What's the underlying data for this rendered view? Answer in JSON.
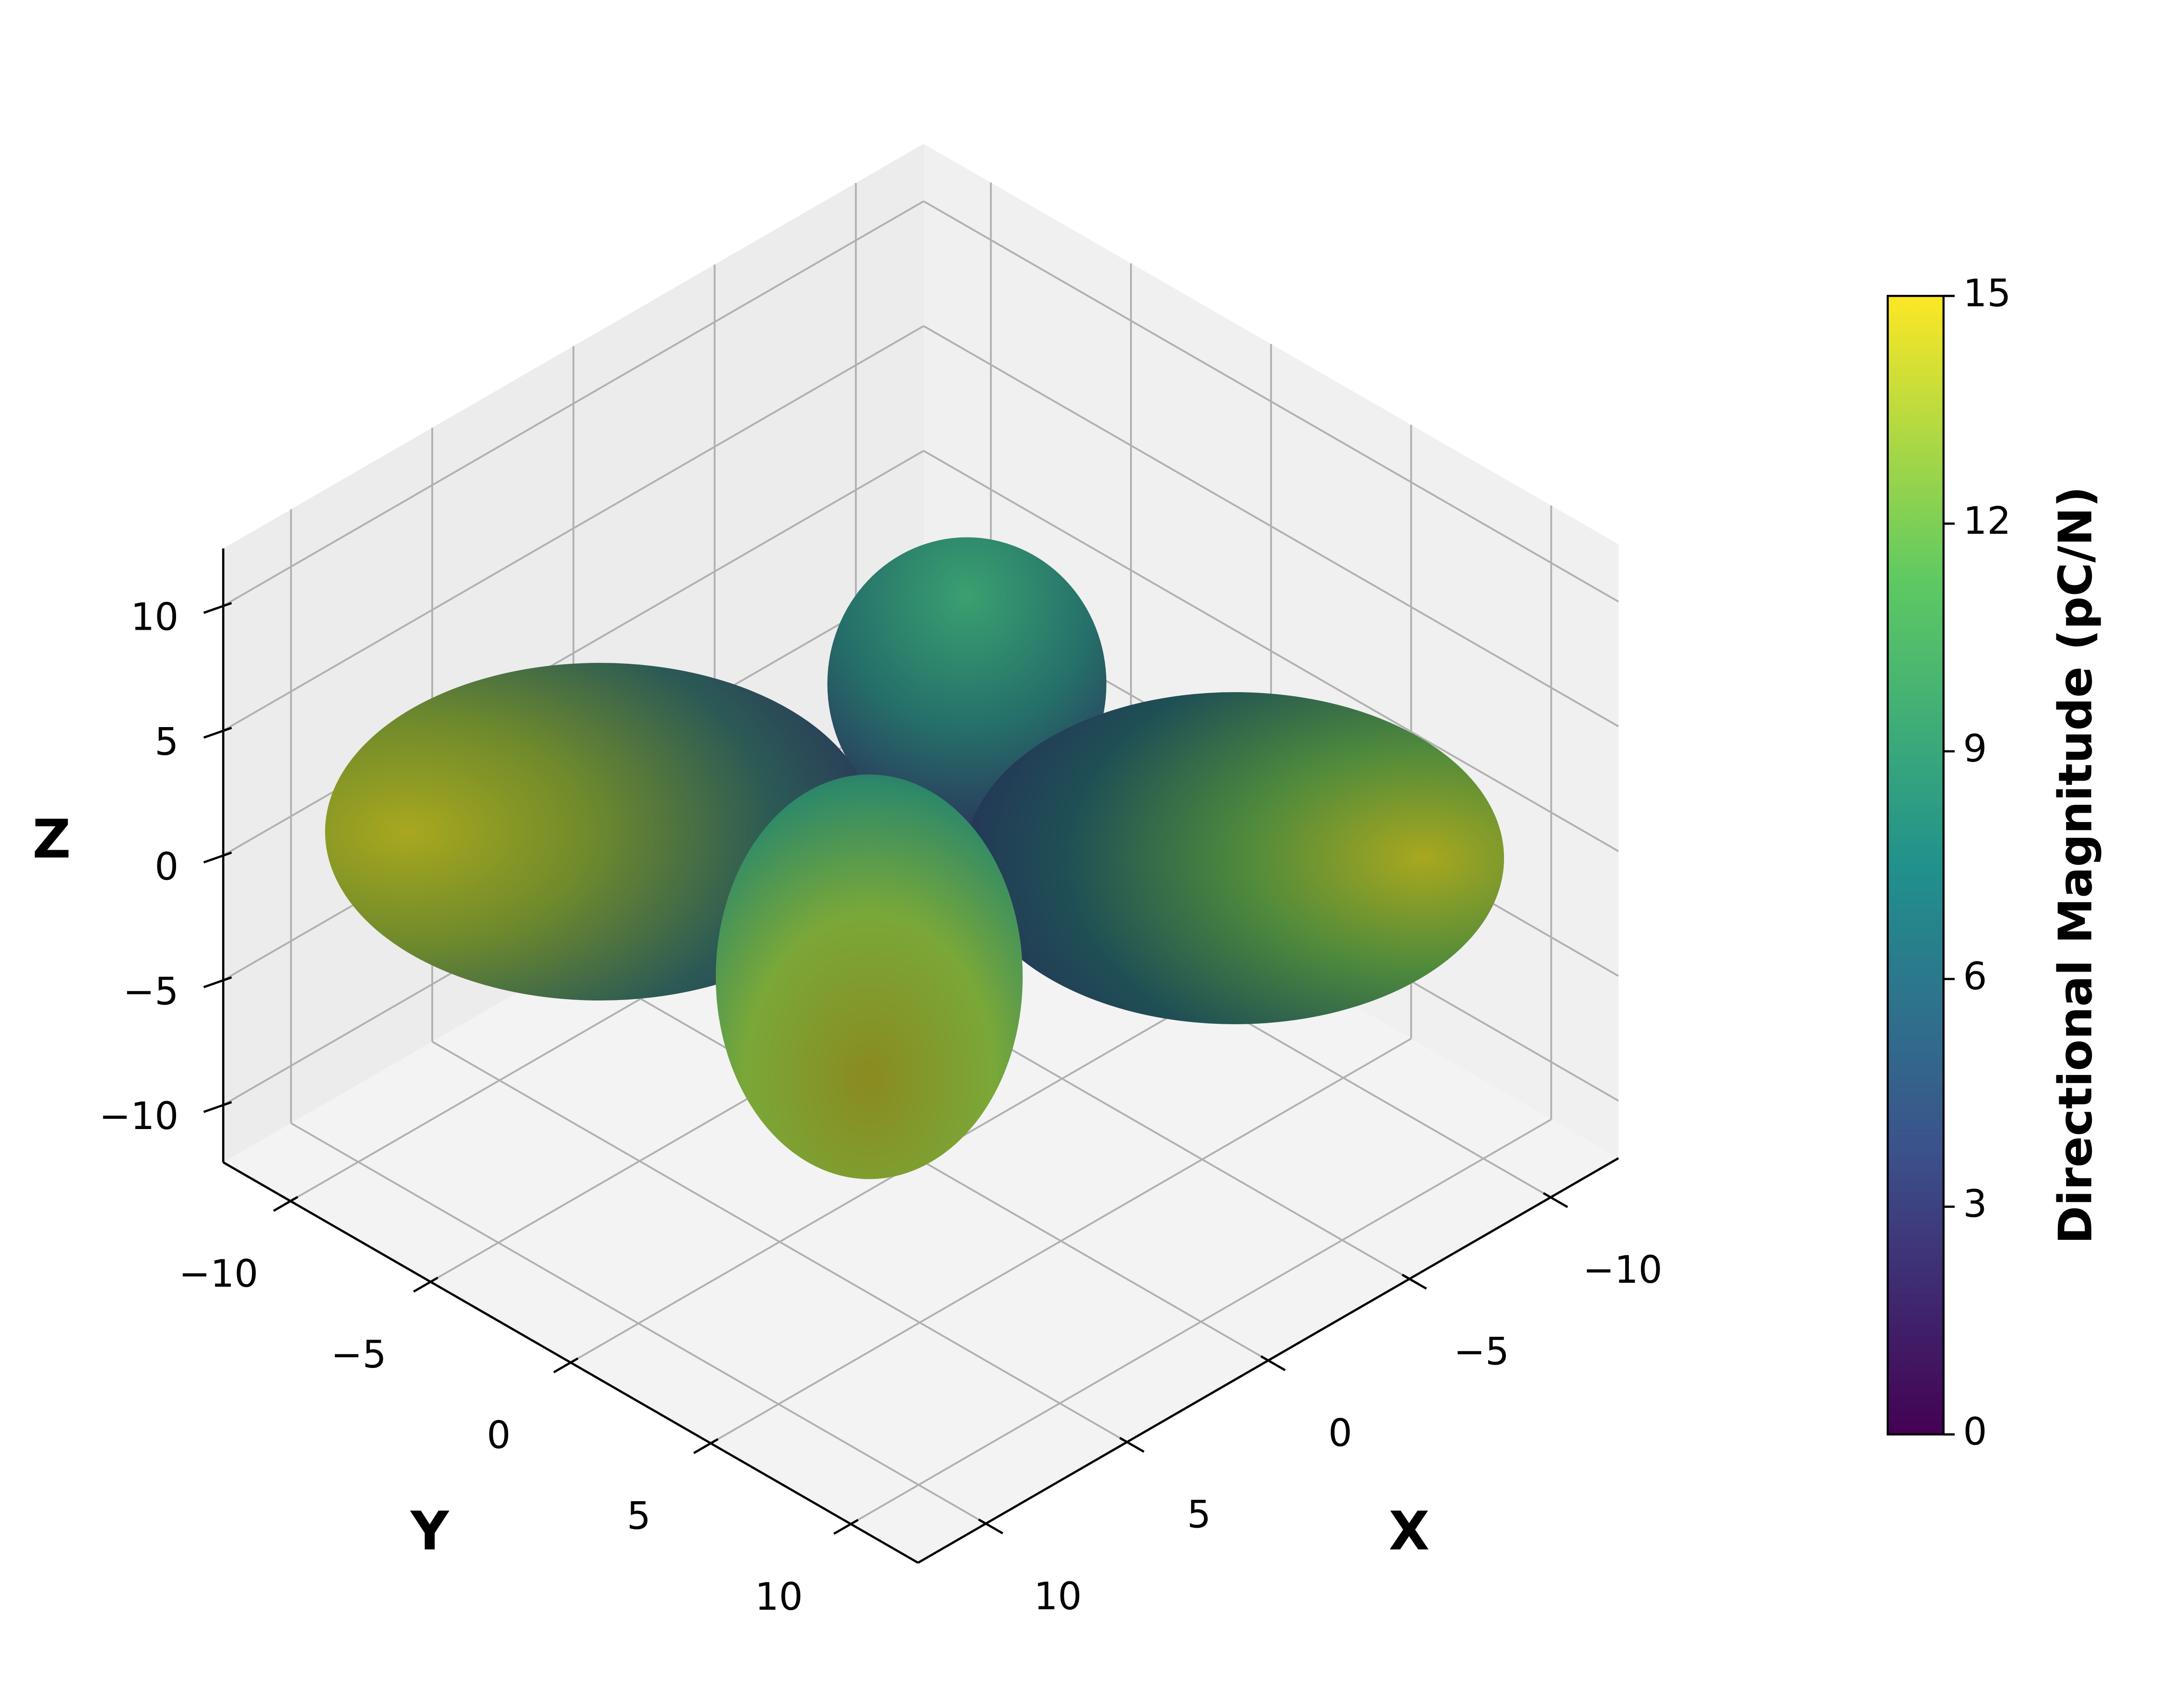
{
  "chart_data": {
    "type": "surface3d",
    "xlabel": "X",
    "ylabel": "Y",
    "zlabel": "Z",
    "xlim": [
      -12.4,
      12.4
    ],
    "ylim": [
      -12.4,
      12.4
    ],
    "zlim": [
      -12.3,
      12.3
    ],
    "xticks": [
      {
        "value": -10,
        "label": "−10"
      },
      {
        "value": -5,
        "label": "−5"
      },
      0,
      5,
      10
    ],
    "yticks": [
      {
        "value": -10,
        "label": "−10"
      },
      {
        "value": -5,
        "label": "−5"
      },
      0,
      5,
      10
    ],
    "zticks": [
      {
        "value": -10,
        "label": "−10"
      },
      {
        "value": -5,
        "label": "−5"
      },
      0,
      5,
      10
    ],
    "grid": true,
    "colorbar": {
      "label": "Directional Magnitude (pC/N)",
      "lim": [
        0,
        15
      ],
      "ticks": [
        0,
        3,
        6,
        9,
        12,
        15
      ],
      "colors": [
        "#440154",
        "#3b528b",
        "#21918c",
        "#5ec962",
        "#fde725"
      ]
    }
  }
}
